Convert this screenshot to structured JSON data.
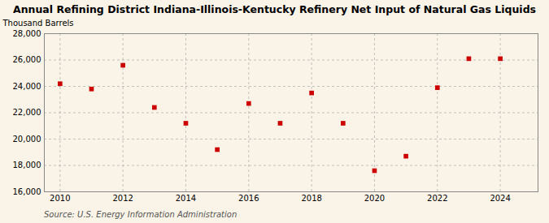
{
  "chart_data": {
    "type": "scatter",
    "title": "Annual Refining District Indiana-Illinois-Kentucky Refinery Net Input of Natural Gas Liquids",
    "ylabel": "Thousand Barrels",
    "source": "Source: U.S. Energy Information Administration",
    "x": [
      2010,
      2011,
      2012,
      2013,
      2014,
      2015,
      2016,
      2017,
      2018,
      2019,
      2020,
      2021,
      2022,
      2023,
      2024
    ],
    "values": [
      24200,
      23800,
      25600,
      22400,
      21200,
      19200,
      22700,
      21200,
      23500,
      21200,
      17600,
      18700,
      23900,
      26100,
      26100
    ],
    "color": "#cc0000",
    "marker": "square",
    "xlim": [
      2009.5,
      2025.2
    ],
    "xticks": [
      2010,
      2012,
      2014,
      2016,
      2018,
      2020,
      2022,
      2024
    ],
    "ylim": [
      16000,
      28000
    ],
    "yticks": [
      {
        "value": 16000,
        "label": "16,000"
      },
      {
        "value": 18000,
        "label": "18,000"
      },
      {
        "value": 20000,
        "label": "20,000"
      },
      {
        "value": 22000,
        "label": "22,000"
      },
      {
        "value": 24000,
        "label": "24,000"
      },
      {
        "value": 26000,
        "label": "26,000"
      },
      {
        "value": 28000,
        "label": "28,000"
      }
    ],
    "grid": true
  }
}
